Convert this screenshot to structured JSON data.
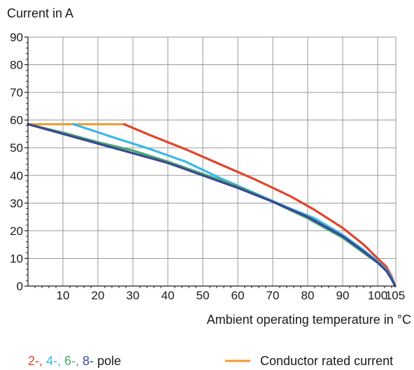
{
  "chart_data": {
    "type": "line",
    "ylabel": "Current in A",
    "xlabel": "Ambient operating temperature in °C",
    "xlim": [
      0,
      105
    ],
    "ylim": [
      0,
      90
    ],
    "x_ticks": [
      10,
      20,
      30,
      40,
      50,
      60,
      70,
      80,
      90,
      100,
      105
    ],
    "y_ticks": [
      0,
      10,
      20,
      30,
      40,
      50,
      60,
      70,
      80,
      90
    ],
    "grid": true,
    "series": [
      {
        "name": "2-",
        "color": "#e0452b",
        "points": [
          [
            27.5,
            58.5
          ],
          [
            35,
            54.5
          ],
          [
            45,
            49.5
          ],
          [
            55,
            44
          ],
          [
            65,
            38.5
          ],
          [
            75,
            32.5
          ],
          [
            82,
            27.5
          ],
          [
            90,
            21
          ],
          [
            96,
            15
          ],
          [
            100,
            10
          ],
          [
            102.5,
            7
          ],
          [
            104,
            3.5
          ],
          [
            105,
            0
          ]
        ]
      },
      {
        "name": "4-",
        "color": "#3bb8e5",
        "points": [
          [
            13,
            58.5
          ],
          [
            25,
            53.5
          ],
          [
            35,
            49.5
          ],
          [
            45,
            45
          ],
          [
            55,
            39
          ],
          [
            65,
            33.5
          ],
          [
            75,
            28
          ],
          [
            82,
            24.5
          ],
          [
            90,
            18.5
          ],
          [
            96,
            13
          ],
          [
            100,
            9
          ],
          [
            102.5,
            6
          ],
          [
            104,
            3
          ],
          [
            105,
            0
          ]
        ]
      },
      {
        "name": "6-",
        "color": "#4aa86e",
        "points": [
          [
            0,
            58.5
          ],
          [
            10,
            55.5
          ],
          [
            20,
            52
          ],
          [
            30,
            49
          ],
          [
            40,
            45
          ],
          [
            50,
            40.5
          ],
          [
            60,
            36
          ],
          [
            70,
            30.5
          ],
          [
            80,
            24.5
          ],
          [
            90,
            17.5
          ],
          [
            96,
            12
          ],
          [
            100,
            8.5
          ],
          [
            102.5,
            5.5
          ],
          [
            104,
            2.5
          ],
          [
            105,
            0
          ]
        ]
      },
      {
        "name": "8-",
        "color": "#3a4894",
        "points": [
          [
            0,
            58.5
          ],
          [
            10,
            55
          ],
          [
            20,
            51.5
          ],
          [
            30,
            48
          ],
          [
            40,
            44.5
          ],
          [
            50,
            40
          ],
          [
            60,
            35.5
          ],
          [
            70,
            30.5
          ],
          [
            80,
            25
          ],
          [
            90,
            18
          ],
          [
            96,
            12.5
          ],
          [
            100,
            8.5
          ],
          [
            102.5,
            5.5
          ],
          [
            104,
            2.5
          ],
          [
            105,
            0
          ]
        ]
      }
    ],
    "conductor_rated_current": {
      "name": "Conductor rated current",
      "color": "#f39a2e",
      "y": 58.5,
      "x": [
        0,
        27.5
      ]
    },
    "legend": {
      "pole_parts": [
        {
          "text": "2-, ",
          "color": "#e0452b"
        },
        {
          "text": "4-, ",
          "color": "#3bb8e5"
        },
        {
          "text": "6-, ",
          "color": "#4aa86e"
        },
        {
          "text": "8-",
          "color": "#3a4894"
        },
        {
          "text": " pole",
          "color": "#1a1a1a"
        }
      ],
      "conductor_label": "Conductor rated current",
      "placement": "bottom"
    }
  }
}
